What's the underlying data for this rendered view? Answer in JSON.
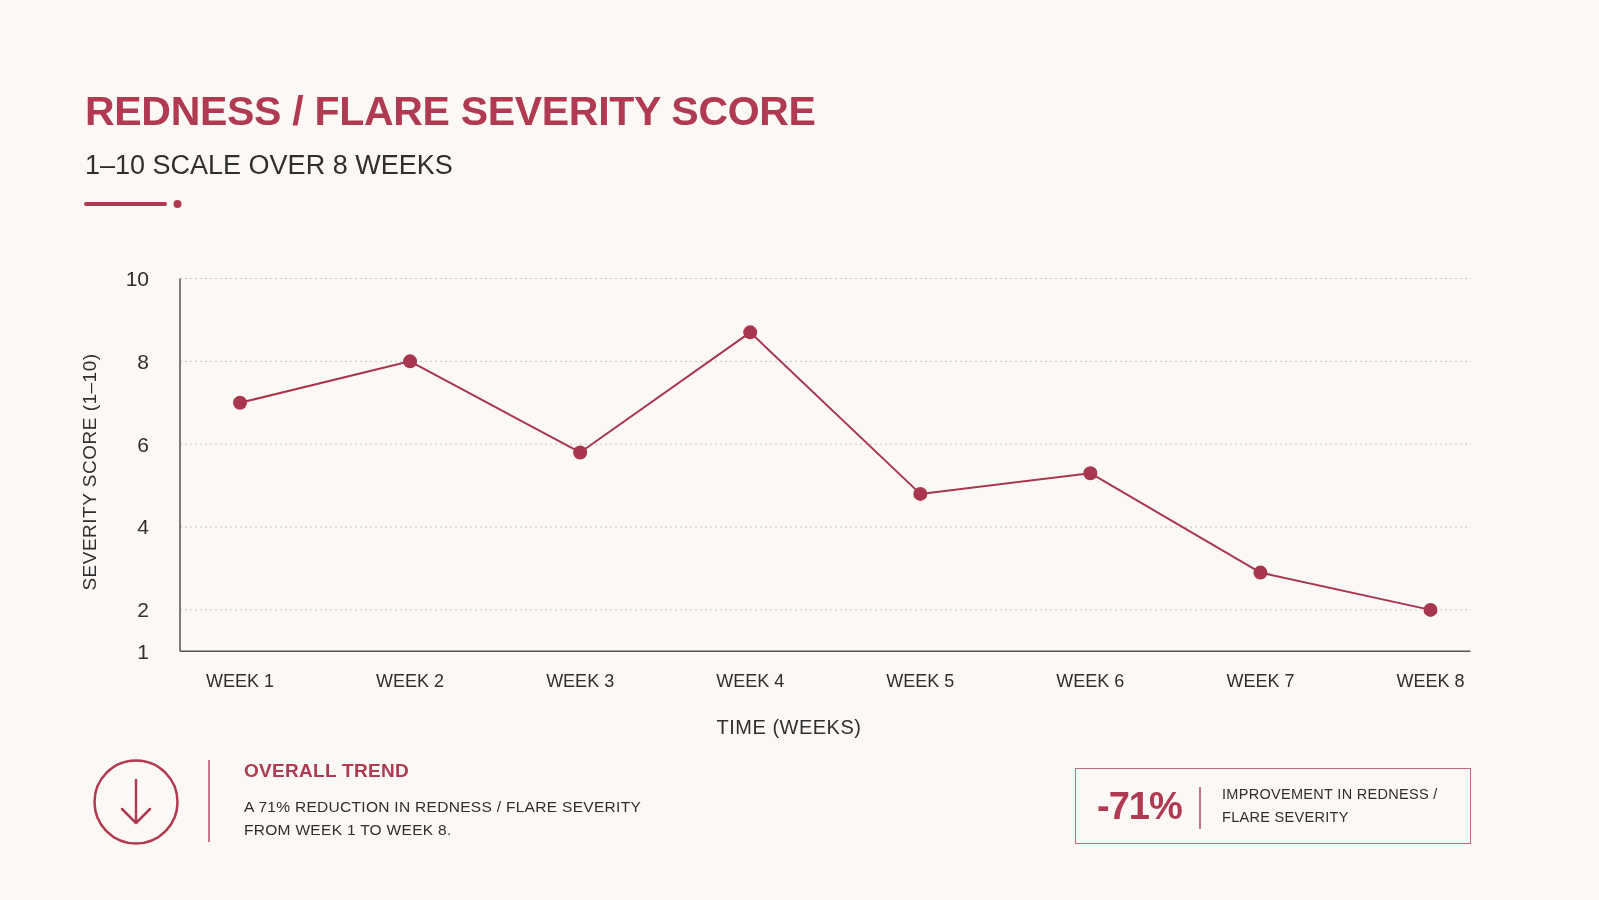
{
  "chart_data": {
    "type": "line",
    "title": "REDNESS / FLARE SEVERITY SCORE",
    "subtitle": "1–10 SCALE OVER 8 WEEKS",
    "xlabel": "TIME (WEEKS)",
    "ylabel": "SEVERITY SCORE (1–10)",
    "categories": [
      "WEEK 1",
      "WEEK 2",
      "WEEK 3",
      "WEEK 4",
      "WEEK 5",
      "WEEK 6",
      "WEEK 7",
      "WEEK 8"
    ],
    "series": [
      {
        "color": "#a8364f",
        "values": [
          7.0,
          8.0,
          5.8,
          8.7,
          4.8,
          5.3,
          2.9,
          2.0
        ]
      }
    ],
    "ylim": [
      1,
      10
    ],
    "yticks": [
      1,
      2,
      4,
      6,
      8,
      10
    ],
    "grid": "y",
    "marker": "circle",
    "line_style": "solid",
    "annotations": [
      "OVERALL TREND",
      "A 71% REDUCTION IN REDNESS / FLARE SEVERITY FROM WEEK 1 TO WEEK 8.",
      "-71%",
      "IMPROVEMENT IN REDNESS / FLARE SEVERITY"
    ]
  }
}
